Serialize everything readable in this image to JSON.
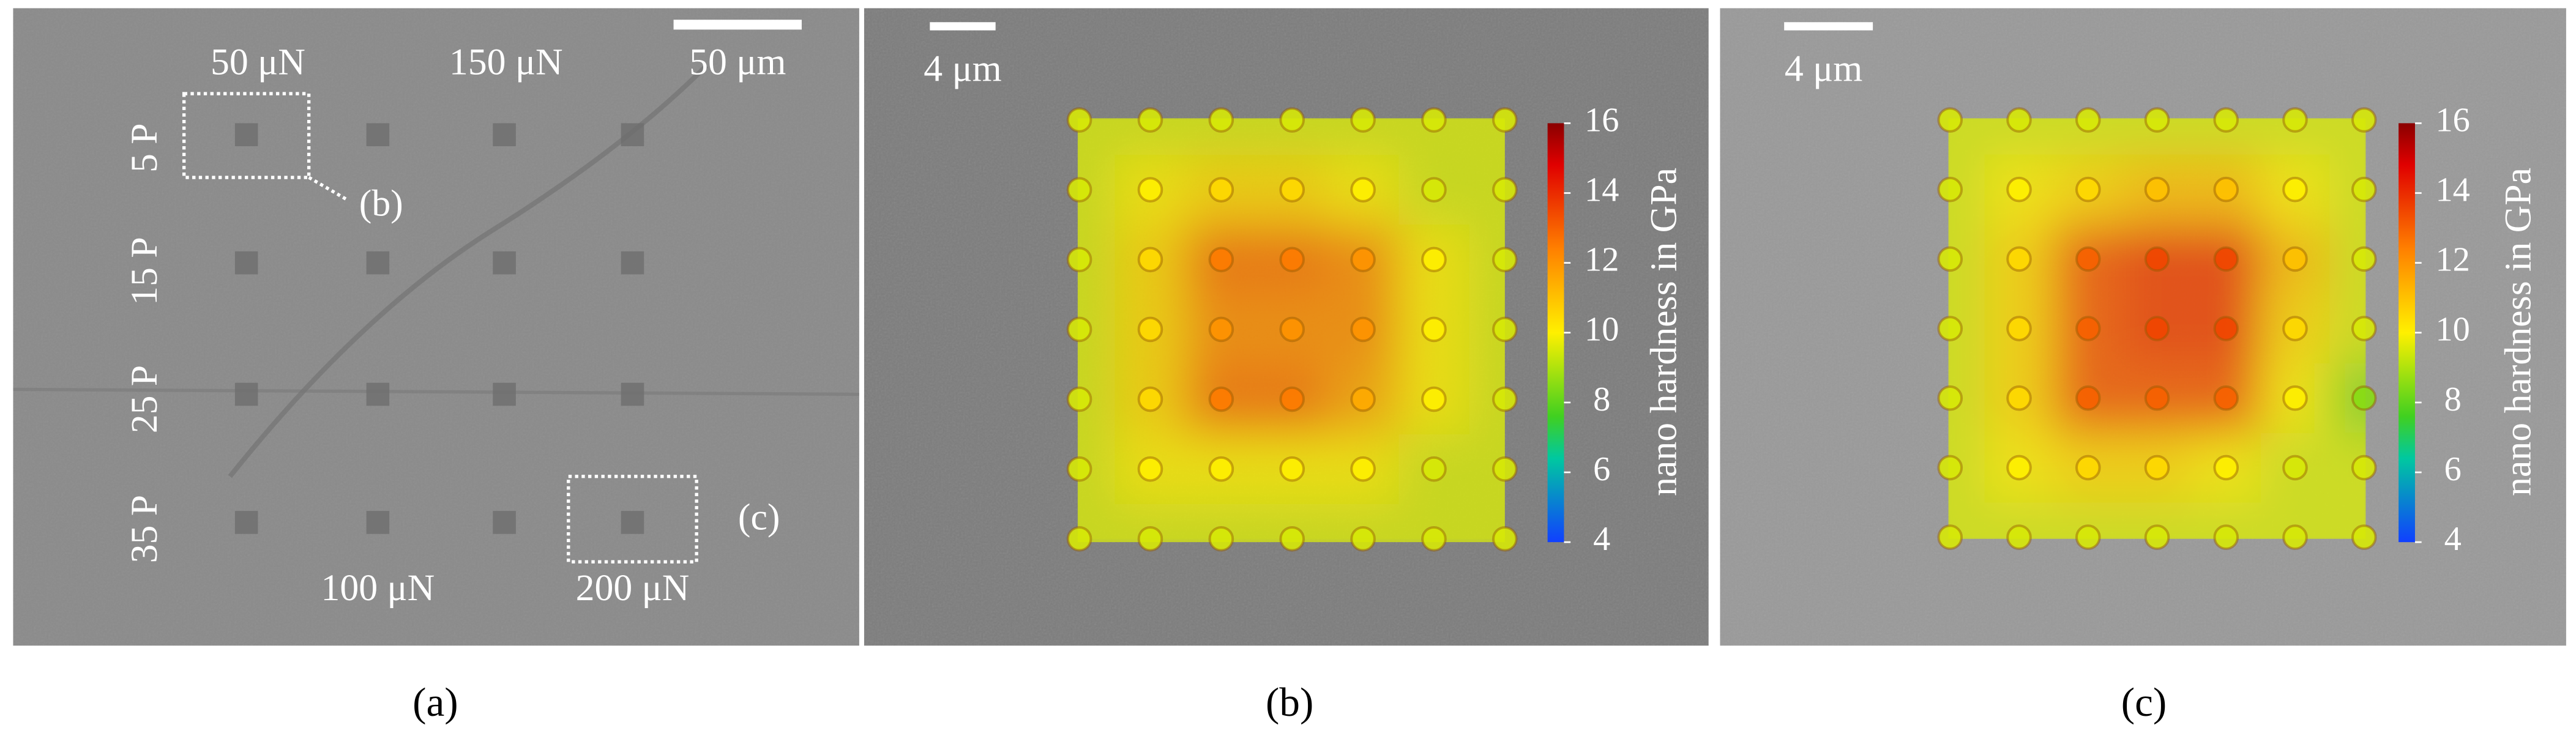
{
  "panels": [
    {
      "label": "(a)",
      "scale_bar": "50 μm",
      "forces": [
        "50 μN",
        "150 μN",
        "100 μN",
        "200 μN"
      ],
      "rows": [
        "5 P",
        "15 P",
        "25 P",
        "35 P"
      ],
      "callouts": [
        "(b)",
        "(c)"
      ]
    },
    {
      "label": "(b)",
      "scale_bar": "4 μm",
      "colorbar": {
        "title": "nano hardness in GPa",
        "ticks": [
          4,
          6,
          8,
          10,
          12,
          14,
          16
        ]
      },
      "hardness": [
        [
          9.5,
          9.5,
          9.5,
          9.5,
          9.5,
          9.5,
          9.5
        ],
        [
          9.5,
          10,
          10.5,
          10.5,
          10,
          9.5,
          9.5
        ],
        [
          9.5,
          10.5,
          12.5,
          12.5,
          12,
          10,
          9.5
        ],
        [
          9.5,
          10.5,
          12,
          12,
          12,
          10,
          9.5
        ],
        [
          9.5,
          10.5,
          12.5,
          12.5,
          11.5,
          10,
          9.5
        ],
        [
          9.5,
          10,
          10,
          10,
          10,
          9.5,
          9.5
        ],
        [
          9.5,
          9.5,
          9.5,
          9.5,
          9.5,
          9.5,
          9.5
        ]
      ]
    },
    {
      "label": "(c)",
      "scale_bar": "4 μm",
      "colorbar": {
        "title": "nano hardness in GPa",
        "ticks": [
          4,
          6,
          8,
          10,
          12,
          14,
          16
        ]
      },
      "hardness": [
        [
          9.5,
          9.5,
          9.5,
          9.5,
          9.5,
          9.5,
          9.5
        ],
        [
          9.5,
          10,
          10.5,
          11,
          11,
          10,
          9.5
        ],
        [
          9.5,
          10.5,
          13,
          13.5,
          13.5,
          11,
          9.5
        ],
        [
          9.5,
          10.5,
          13,
          13.5,
          13.5,
          10.5,
          9.5
        ],
        [
          9.5,
          10.5,
          13,
          13,
          13,
          10,
          8.5
        ],
        [
          9.5,
          10,
          10.5,
          10.5,
          10,
          9.5,
          9.5
        ],
        [
          9.5,
          9.5,
          9.5,
          9.5,
          9.5,
          9.5,
          9.5
        ]
      ]
    }
  ]
}
